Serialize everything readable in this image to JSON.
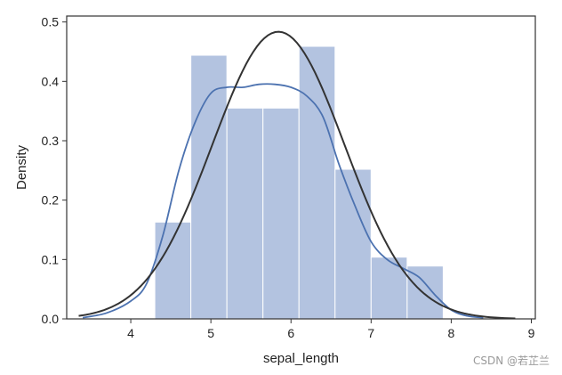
{
  "chart_data": {
    "type": "bar",
    "subtype": "histogram-with-density",
    "xlabel": "sepal_length",
    "ylabel": "Density",
    "xlim": [
      3.2,
      9.05
    ],
    "ylim": [
      0,
      0.51
    ],
    "xticks": [
      4,
      5,
      6,
      7,
      8,
      9
    ],
    "yticks": [
      0.0,
      0.1,
      0.2,
      0.3,
      0.4,
      0.5
    ],
    "ytick_labels": [
      "0.0",
      "0.1",
      "0.2",
      "0.3",
      "0.4",
      "0.5"
    ],
    "grid": false,
    "bar_color": "#b3c3e0",
    "bins": [
      {
        "x0": 4.3,
        "x1": 4.75,
        "value": 0.163
      },
      {
        "x0": 4.75,
        "x1": 5.2,
        "value": 0.444
      },
      {
        "x0": 5.2,
        "x1": 5.65,
        "value": 0.355
      },
      {
        "x0": 5.65,
        "x1": 6.1,
        "value": 0.355
      },
      {
        "x0": 6.1,
        "x1": 6.55,
        "value": 0.459
      },
      {
        "x0": 6.55,
        "x1": 7.0,
        "value": 0.252
      },
      {
        "x0": 7.0,
        "x1": 7.45,
        "value": 0.104
      },
      {
        "x0": 7.45,
        "x1": 7.9,
        "value": 0.089
      }
    ],
    "series": [
      {
        "kind": "kde",
        "color": "#4c72b0",
        "x": [
          3.4,
          3.7,
          4.0,
          4.2,
          4.4,
          4.6,
          4.8,
          5.0,
          5.2,
          5.4,
          5.6,
          5.8,
          6.0,
          6.2,
          6.4,
          6.6,
          6.8,
          7.0,
          7.2,
          7.4,
          7.6,
          7.8,
          8.0,
          8.2,
          8.4
        ],
        "y": [
          0.002,
          0.01,
          0.03,
          0.06,
          0.14,
          0.25,
          0.33,
          0.38,
          0.39,
          0.39,
          0.395,
          0.395,
          0.39,
          0.375,
          0.34,
          0.26,
          0.19,
          0.13,
          0.1,
          0.085,
          0.07,
          0.04,
          0.015,
          0.005,
          0.002
        ]
      },
      {
        "kind": "normal-fit",
        "color": "#333333",
        "mean": 5.843,
        "sd": 0.825
      }
    ]
  },
  "watermark": "CSDN @若芷兰"
}
